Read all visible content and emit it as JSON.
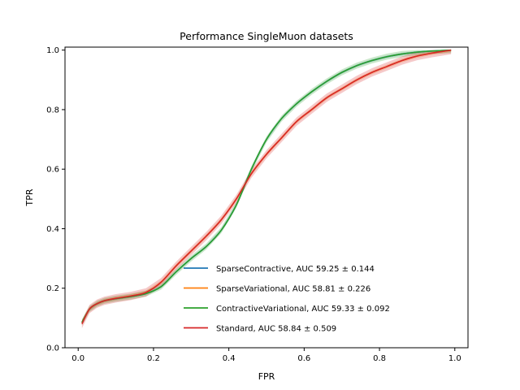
{
  "chart_data": {
    "type": "line",
    "title": "Performance SingleMuon datasets",
    "xlabel": "FPR",
    "ylabel": "TPR",
    "xlim": [
      -0.035,
      1.035
    ],
    "ylim": [
      0.0,
      1.01
    ],
    "xticks": [
      0.0,
      0.2,
      0.4,
      0.6,
      0.8,
      1.0
    ],
    "xtick_labels": [
      "0.0",
      "0.2",
      "0.4",
      "0.6",
      "0.8",
      "1.0"
    ],
    "yticks": [
      0.0,
      0.2,
      0.4,
      0.6,
      0.8,
      1.0
    ],
    "ytick_labels": [
      "0.0",
      "0.2",
      "0.4",
      "0.6",
      "0.8",
      "1.0"
    ],
    "grid": false,
    "legend_position": "lower-right",
    "series": [
      {
        "name": "SparseContractive, AUC 59.25 ± 0.144",
        "color": "#1f77b4",
        "band": 0.004,
        "x": [
          0.01,
          0.03,
          0.05,
          0.07,
          0.1,
          0.14,
          0.18,
          0.22,
          0.26,
          0.3,
          0.34,
          0.38,
          0.42,
          0.46,
          0.5,
          0.54,
          0.58,
          0.62,
          0.66,
          0.7,
          0.74,
          0.78,
          0.82,
          0.86,
          0.9,
          0.94,
          0.99
        ],
        "y": [
          0.085,
          0.13,
          0.148,
          0.158,
          0.165,
          0.172,
          0.182,
          0.205,
          0.255,
          0.3,
          0.34,
          0.395,
          0.48,
          0.6,
          0.7,
          0.77,
          0.82,
          0.86,
          0.895,
          0.925,
          0.948,
          0.965,
          0.978,
          0.987,
          0.993,
          0.997,
          1.0
        ]
      },
      {
        "name": "SparseVariational, AUC 58.81 ± 0.226",
        "color": "#ff7f0e",
        "band": 0.006,
        "x": [
          0.01,
          0.03,
          0.05,
          0.07,
          0.1,
          0.14,
          0.18,
          0.22,
          0.26,
          0.3,
          0.34,
          0.38,
          0.42,
          0.46,
          0.5,
          0.54,
          0.58,
          0.62,
          0.66,
          0.7,
          0.74,
          0.78,
          0.82,
          0.86,
          0.9,
          0.94,
          0.99
        ],
        "y": [
          0.085,
          0.13,
          0.148,
          0.158,
          0.166,
          0.174,
          0.186,
          0.22,
          0.275,
          0.325,
          0.375,
          0.43,
          0.5,
          0.585,
          0.65,
          0.705,
          0.76,
          0.8,
          0.84,
          0.87,
          0.9,
          0.925,
          0.945,
          0.965,
          0.98,
          0.99,
          1.0
        ]
      },
      {
        "name": "ContractiveVariational, AUC 59.33 ± 0.092",
        "color": "#2ca02c",
        "band": 0.01,
        "x": [
          0.01,
          0.03,
          0.05,
          0.07,
          0.1,
          0.14,
          0.18,
          0.22,
          0.26,
          0.3,
          0.34,
          0.38,
          0.42,
          0.46,
          0.5,
          0.54,
          0.58,
          0.62,
          0.66,
          0.7,
          0.74,
          0.78,
          0.82,
          0.86,
          0.9,
          0.94,
          0.99
        ],
        "y": [
          0.085,
          0.13,
          0.148,
          0.158,
          0.165,
          0.172,
          0.182,
          0.205,
          0.255,
          0.3,
          0.34,
          0.395,
          0.48,
          0.6,
          0.7,
          0.77,
          0.82,
          0.86,
          0.895,
          0.925,
          0.948,
          0.965,
          0.978,
          0.987,
          0.993,
          0.997,
          1.0
        ]
      },
      {
        "name": "Standard, AUC 58.84 ± 0.509",
        "color": "#d62728",
        "band": 0.014,
        "x": [
          0.01,
          0.03,
          0.05,
          0.07,
          0.1,
          0.14,
          0.18,
          0.22,
          0.26,
          0.3,
          0.34,
          0.38,
          0.42,
          0.46,
          0.5,
          0.54,
          0.58,
          0.62,
          0.66,
          0.7,
          0.74,
          0.78,
          0.82,
          0.86,
          0.9,
          0.94,
          0.99
        ],
        "y": [
          0.08,
          0.13,
          0.148,
          0.158,
          0.166,
          0.174,
          0.186,
          0.22,
          0.275,
          0.325,
          0.375,
          0.43,
          0.5,
          0.585,
          0.65,
          0.705,
          0.76,
          0.8,
          0.84,
          0.87,
          0.9,
          0.925,
          0.945,
          0.965,
          0.98,
          0.99,
          1.0
        ]
      }
    ]
  }
}
